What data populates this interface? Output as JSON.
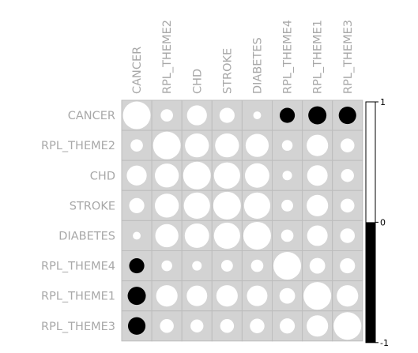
{
  "chart_data": {
    "type": "heatmap",
    "subtype": "correlation-circles",
    "variables": [
      "CANCER",
      "RPL_THEME2",
      "CHD",
      "STROKE",
      "DIABETES",
      "RPL_THEME4",
      "RPL_THEME1",
      "RPL_THEME3"
    ],
    "matrix": [
      [
        1.0,
        0.2,
        0.52,
        0.3,
        0.08,
        -0.3,
        -0.43,
        -0.4
      ],
      [
        0.2,
        1.0,
        0.75,
        0.75,
        0.7,
        0.15,
        0.6,
        0.25
      ],
      [
        0.52,
        0.75,
        1.0,
        0.9,
        0.78,
        0.12,
        0.55,
        0.22
      ],
      [
        0.3,
        0.75,
        0.9,
        1.0,
        0.9,
        0.18,
        0.6,
        0.25
      ],
      [
        0.08,
        0.7,
        0.78,
        0.9,
        1.0,
        0.2,
        0.55,
        0.28
      ],
      [
        -0.3,
        0.15,
        0.12,
        0.18,
        0.2,
        1.0,
        0.32,
        0.3
      ],
      [
        -0.43,
        0.6,
        0.55,
        0.6,
        0.55,
        0.32,
        1.0,
        0.6
      ],
      [
        -0.4,
        0.25,
        0.22,
        0.25,
        0.28,
        0.3,
        0.6,
        1.0
      ]
    ],
    "colorbar": {
      "ticks": [
        "1",
        "0",
        "-1"
      ],
      "range": [
        -1,
        1
      ]
    },
    "colors": {
      "positive": "#ffffff",
      "negative": "#000000",
      "cell_background": "#d3d3d3",
      "grid": "#bdbdbd",
      "label": "#a8a8a8"
    }
  }
}
